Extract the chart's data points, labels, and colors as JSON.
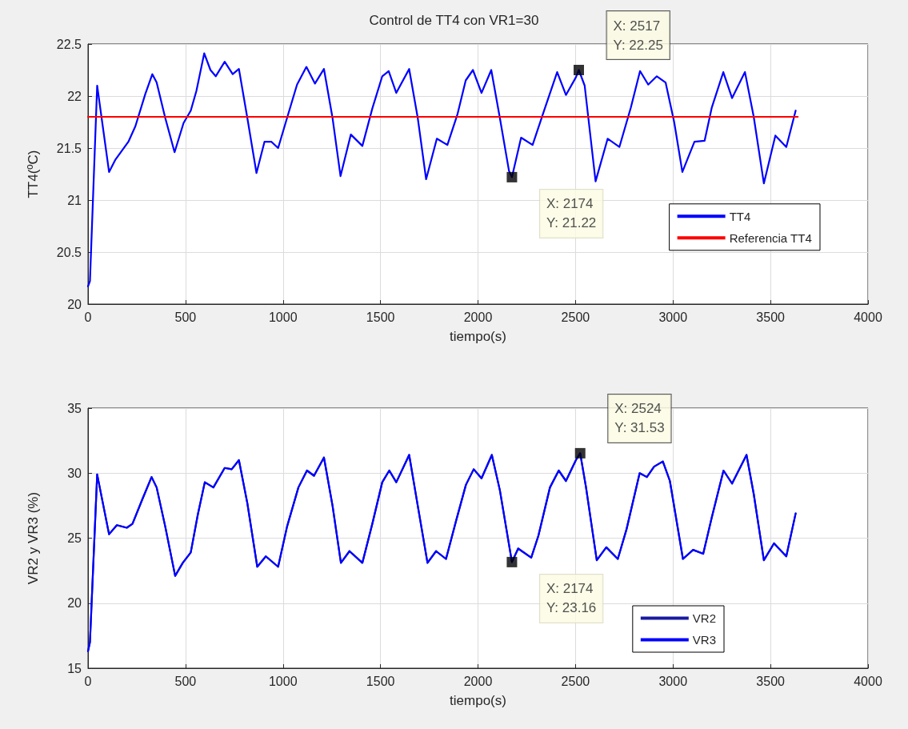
{
  "chart_data": [
    {
      "type": "line",
      "title": "Control de TT4 con VR1=30",
      "xlabel": "tiempo(s)",
      "ylabel": "TT4(ºC)",
      "xlim": [
        0,
        4000
      ],
      "xticks": [
        0,
        500,
        1000,
        1500,
        2000,
        2500,
        3000,
        3500,
        4000
      ],
      "ylim": [
        20,
        22.5
      ],
      "yticks": [
        20,
        20.5,
        21,
        21.5,
        22,
        22.5
      ],
      "grid": true,
      "legend": "right",
      "marker": "none",
      "line_style": "solid",
      "series": [
        {
          "name": "TT4",
          "color": "#0000ff",
          "x": [
            0,
            10,
            47,
            108,
            141,
            207,
            243,
            294,
            330,
            352,
            396,
            444,
            490,
            527,
            556,
            596,
            628,
            655,
            701,
            742,
            774,
            817,
            864,
            905,
            941,
            975,
            1021,
            1072,
            1120,
            1164,
            1210,
            1254,
            1295,
            1348,
            1407,
            1458,
            1509,
            1542,
            1581,
            1647,
            1691,
            1734,
            1789,
            1843,
            1894,
            1937,
            1974,
            2018,
            2068,
            2112,
            2159,
            2174,
            2221,
            2280,
            2339,
            2406,
            2451,
            2502,
            2517,
            2547,
            2603,
            2665,
            2725,
            2784,
            2831,
            2873,
            2917,
            2962,
            3006,
            3048,
            3110,
            3162,
            3199,
            3258,
            3303,
            3369,
            3414,
            3466,
            3525,
            3581,
            3629
          ],
          "values": [
            20.17,
            20.22,
            22.1,
            21.27,
            21.39,
            21.56,
            21.71,
            22.02,
            22.21,
            22.13,
            21.79,
            21.46,
            21.74,
            21.86,
            22.05,
            22.41,
            22.25,
            22.19,
            22.33,
            22.21,
            22.26,
            21.79,
            21.26,
            21.56,
            21.56,
            21.5,
            21.79,
            22.11,
            22.28,
            22.12,
            22.26,
            21.79,
            21.23,
            21.63,
            21.52,
            21.88,
            22.19,
            22.24,
            22.03,
            22.26,
            21.79,
            21.2,
            21.59,
            21.53,
            21.82,
            22.15,
            22.25,
            22.03,
            22.25,
            21.79,
            21.28,
            21.22,
            21.6,
            21.53,
            21.86,
            22.23,
            22.01,
            22.18,
            22.25,
            22.1,
            21.18,
            21.59,
            21.51,
            21.89,
            22.24,
            22.11,
            22.19,
            22.13,
            21.75,
            21.27,
            21.56,
            21.57,
            21.89,
            22.23,
            21.98,
            22.23,
            21.8,
            21.16,
            21.62,
            21.51,
            21.86
          ]
        },
        {
          "name": "Referencia TT4",
          "color": "#ff0000",
          "x": [
            0,
            3640
          ],
          "values": [
            21.8,
            21.8
          ]
        }
      ],
      "annotations": [
        {
          "text": "X: 2174\nY: 21.22",
          "x": 2174,
          "y": 21.22
        },
        {
          "text": "X: 2517\nY: 22.25",
          "x": 2517,
          "y": 22.25
        }
      ]
    },
    {
      "type": "line",
      "xlabel": "tiempo(s)",
      "ylabel": "VR2 y VR3 (%)",
      "xlim": [
        0,
        4000
      ],
      "xticks": [
        0,
        500,
        1000,
        1500,
        2000,
        2500,
        3000,
        3500,
        4000
      ],
      "ylim": [
        15,
        35
      ],
      "yticks": [
        15,
        20,
        25,
        30,
        35
      ],
      "grid": true,
      "legend": "bottom right",
      "marker": "none",
      "line_style": "solid",
      "series": [
        {
          "name": "VR2",
          "color": "#1a1aa0",
          "x": [
            0,
            10,
            47,
            108,
            148,
            199,
            228,
            279,
            326,
            352,
            396,
            447,
            486,
            527,
            563,
            599,
            643,
            701,
            737,
            774,
            817,
            868,
            912,
            975,
            1021,
            1079,
            1123,
            1159,
            1210,
            1254,
            1297,
            1341,
            1407,
            1458,
            1509,
            1545,
            1581,
            1647,
            1691,
            1741,
            1785,
            1836,
            1887,
            1938,
            1978,
            2018,
            2071,
            2112,
            2174,
            2206,
            2273,
            2310,
            2369,
            2414,
            2451,
            2502,
            2524,
            2554,
            2609,
            2658,
            2717,
            2762,
            2829,
            2866,
            2903,
            2948,
            2984,
            3051,
            3103,
            3155,
            3199,
            3259,
            3303,
            3377,
            3414,
            3466,
            3518,
            3581,
            3629
          ],
          "values": [
            16.3,
            17.0,
            29.9,
            25.3,
            26.0,
            25.8,
            26.1,
            28.0,
            29.7,
            28.9,
            25.9,
            22.1,
            23.1,
            23.9,
            26.8,
            29.3,
            28.9,
            30.4,
            30.3,
            31.0,
            27.7,
            22.8,
            23.6,
            22.8,
            25.9,
            28.9,
            30.2,
            29.8,
            31.2,
            27.5,
            23.1,
            24.0,
            23.1,
            26.1,
            29.3,
            30.2,
            29.3,
            31.4,
            27.5,
            23.1,
            24.0,
            23.4,
            26.3,
            29.1,
            30.3,
            29.6,
            31.4,
            28.7,
            23.16,
            24.2,
            23.5,
            25.2,
            28.9,
            30.2,
            29.4,
            31.0,
            31.53,
            28.9,
            23.3,
            24.3,
            23.4,
            25.7,
            30.0,
            29.7,
            30.5,
            30.9,
            29.4,
            23.4,
            24.1,
            23.8,
            26.6,
            30.2,
            29.2,
            31.4,
            28.4,
            23.3,
            24.6,
            23.6,
            26.9
          ]
        },
        {
          "name": "VR3",
          "color": "#0000ff",
          "x": [
            0,
            10,
            47,
            108,
            148,
            199,
            228,
            279,
            326,
            352,
            396,
            447,
            486,
            527,
            563,
            599,
            643,
            701,
            737,
            774,
            817,
            868,
            912,
            975,
            1021,
            1079,
            1123,
            1159,
            1210,
            1254,
            1297,
            1341,
            1407,
            1458,
            1509,
            1545,
            1581,
            1647,
            1691,
            1741,
            1785,
            1836,
            1887,
            1938,
            1978,
            2018,
            2071,
            2112,
            2174,
            2206,
            2273,
            2310,
            2369,
            2414,
            2451,
            2502,
            2524,
            2554,
            2609,
            2658,
            2717,
            2762,
            2829,
            2866,
            2903,
            2948,
            2984,
            3051,
            3103,
            3155,
            3199,
            3259,
            3303,
            3377,
            3414,
            3466,
            3518,
            3581,
            3629
          ],
          "values": [
            16.3,
            17.0,
            29.9,
            25.3,
            26.0,
            25.8,
            26.1,
            28.0,
            29.7,
            28.9,
            25.9,
            22.1,
            23.1,
            23.9,
            26.8,
            29.3,
            28.9,
            30.4,
            30.3,
            31.0,
            27.7,
            22.8,
            23.6,
            22.8,
            25.9,
            28.9,
            30.2,
            29.8,
            31.2,
            27.5,
            23.1,
            24.0,
            23.1,
            26.1,
            29.3,
            30.2,
            29.3,
            31.4,
            27.5,
            23.1,
            24.0,
            23.4,
            26.3,
            29.1,
            30.3,
            29.6,
            31.4,
            28.7,
            23.16,
            24.2,
            23.5,
            25.2,
            28.9,
            30.2,
            29.4,
            31.0,
            31.53,
            28.9,
            23.3,
            24.3,
            23.4,
            25.7,
            30.0,
            29.7,
            30.5,
            30.9,
            29.4,
            23.4,
            24.1,
            23.8,
            26.6,
            30.2,
            29.2,
            31.4,
            28.4,
            23.3,
            24.6,
            23.6,
            26.9
          ]
        }
      ],
      "annotations": [
        {
          "text": "X: 2174\nY: 23.16",
          "x": 2174,
          "y": 23.16
        },
        {
          "text": "X: 2524\nY: 31.53",
          "x": 2524,
          "y": 31.53
        }
      ]
    }
  ]
}
